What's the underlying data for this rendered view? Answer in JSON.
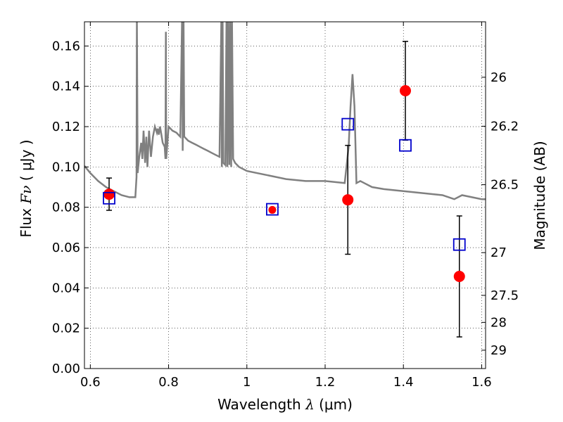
{
  "chart_data": {
    "type": "scatter",
    "xlabel": "Wavelength",
    "xlabel_symbol": "λ",
    "xlabel_unit": "(μm)",
    "ylabel": "Flux",
    "ylabel_symbol": "Fν",
    "ylabel_unit": "( μJy )",
    "y2label": "Magnitude (AB)",
    "xlim": [
      0.585,
      1.61
    ],
    "ylim": [
      0.0,
      0.172
    ],
    "grid": true,
    "x_ticks": [
      0.6,
      0.8,
      1.0,
      1.2,
      1.4,
      1.6
    ],
    "x_tick_labels": [
      "0.6",
      "0.8",
      "1",
      "1.2",
      "1.4",
      "1.6"
    ],
    "y_ticks": [
      0.0,
      0.02,
      0.04,
      0.06,
      0.08,
      0.1,
      0.12,
      0.14,
      0.16
    ],
    "y_tick_labels": [
      "0.00",
      "0.02",
      "0.04",
      "0.06",
      "0.08",
      "0.10",
      "0.12",
      "0.14",
      "0.16"
    ],
    "y2_ticks": [
      {
        "label": "26",
        "flux": 0.1445
      },
      {
        "label": "26.2",
        "flux": 0.1202
      },
      {
        "label": "26.5",
        "flux": 0.0912
      },
      {
        "label": "27",
        "flux": 0.0575
      },
      {
        "label": "27.5",
        "flux": 0.0363
      },
      {
        "label": "28",
        "flux": 0.0229
      },
      {
        "label": "29",
        "flux": 0.0091
      }
    ],
    "colors": {
      "model": "#808080",
      "observed": "#ff0000",
      "model_photometry": "#0000cc",
      "errorbar": "#000000"
    },
    "series": [
      {
        "role": "model_sed",
        "x": [
          0.585,
          0.6,
          0.62,
          0.64,
          0.66,
          0.68,
          0.7,
          0.715,
          0.718,
          0.719,
          0.721,
          0.725,
          0.73,
          0.733,
          0.736,
          0.74,
          0.743,
          0.746,
          0.75,
          0.755,
          0.76,
          0.765,
          0.77,
          0.772,
          0.775,
          0.778,
          0.78,
          0.785,
          0.79,
          0.792,
          0.793,
          0.794,
          0.8,
          0.81,
          0.82,
          0.83,
          0.835,
          0.836,
          0.838,
          0.84,
          0.85,
          0.86,
          0.87,
          0.88,
          0.89,
          0.9,
          0.91,
          0.92,
          0.93,
          0.935,
          0.936,
          0.938,
          0.94,
          0.945,
          0.948,
          0.95,
          0.952,
          0.955,
          0.957,
          0.96,
          0.962,
          0.965,
          0.97,
          0.98,
          1.0,
          1.05,
          1.1,
          1.15,
          1.2,
          1.25,
          1.26,
          1.265,
          1.27,
          1.275,
          1.28,
          1.29,
          1.3,
          1.32,
          1.35,
          1.4,
          1.45,
          1.5,
          1.53,
          1.55,
          1.6,
          1.61
        ],
        "y": [
          0.1005,
          0.097,
          0.093,
          0.09,
          0.088,
          0.086,
          0.085,
          0.085,
          0.095,
          0.175,
          0.097,
          0.105,
          0.112,
          0.104,
          0.118,
          0.102,
          0.115,
          0.1,
          0.118,
          0.105,
          0.115,
          0.12,
          0.117,
          0.119,
          0.116,
          0.12,
          0.118,
          0.112,
          0.11,
          0.104,
          0.167,
          0.104,
          0.12,
          0.118,
          0.117,
          0.115,
          0.18,
          0.108,
          0.18,
          0.115,
          0.113,
          0.112,
          0.111,
          0.11,
          0.109,
          0.108,
          0.107,
          0.106,
          0.105,
          0.175,
          0.1,
          0.175,
          0.102,
          0.101,
          0.175,
          0.1,
          0.175,
          0.101,
          0.175,
          0.1,
          0.175,
          0.104,
          0.102,
          0.1,
          0.098,
          0.096,
          0.094,
          0.093,
          0.093,
          0.092,
          0.11,
          0.13,
          0.146,
          0.13,
          0.092,
          0.093,
          0.092,
          0.09,
          0.089,
          0.088,
          0.087,
          0.086,
          0.084,
          0.086,
          0.084,
          0.084
        ]
      },
      {
        "role": "model_photometry",
        "x": [
          0.648,
          1.065,
          1.258,
          1.405,
          1.543
        ],
        "y": [
          0.0845,
          0.079,
          0.1212,
          0.1107,
          0.0615
        ]
      },
      {
        "role": "observed",
        "x": [
          0.648,
          1.065,
          1.258,
          1.405,
          1.543
        ],
        "y": [
          0.0865,
          0.0787,
          0.0837,
          0.1378,
          0.0457
        ],
        "err": [
          0.008,
          0.0,
          0.027,
          0.0245,
          0.03
        ]
      }
    ]
  }
}
